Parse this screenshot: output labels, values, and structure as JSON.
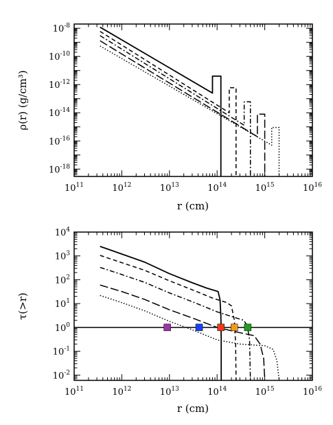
{
  "chart_data": [
    {
      "type": "line",
      "panel": "top",
      "xlabel": "r  (cm)",
      "ylabel": "ρ(r)  (g/cm³)",
      "xscale": "log",
      "yscale": "log",
      "xlim": [
        100000000000.0,
        1e+16
      ],
      "ylim": [
        3e-19,
        2e-08
      ],
      "x_ticks": [
        {
          "value": 100000000000.0,
          "base": "10",
          "exp": "11"
        },
        {
          "value": 1000000000000.0,
          "base": "10",
          "exp": "12"
        },
        {
          "value": 10000000000000.0,
          "base": "10",
          "exp": "13"
        },
        {
          "value": 100000000000000.0,
          "base": "10",
          "exp": "14"
        },
        {
          "value": 1000000000000000.0,
          "base": "10",
          "exp": "15"
        },
        {
          "value": 1e+16,
          "base": "10",
          "exp": "16"
        }
      ],
      "y_ticks": [
        {
          "value": 1e-08,
          "base": "10",
          "exp": "-8"
        },
        {
          "value": 1e-10,
          "base": "10",
          "exp": "-10"
        },
        {
          "value": 1e-12,
          "base": "10",
          "exp": "-12"
        },
        {
          "value": 1e-14,
          "base": "10",
          "exp": "-14"
        },
        {
          "value": 1e-16,
          "base": "10",
          "exp": "-16"
        },
        {
          "value": 1e-18,
          "base": "10",
          "exp": "-18"
        }
      ],
      "grid": false,
      "series": [
        {
          "style": "solid",
          "color": "#000000",
          "points": [
            [
              350000000000.0,
              1.2e-08
            ],
            [
              80000000000000.0,
              2.5e-13
            ],
            [
              80000000000000.0,
              4e-12
            ],
            [
              120000000000000.0,
              4e-12
            ],
            [
              120000000000000.0,
              3e-19
            ]
          ]
        },
        {
          "style": "dashed",
          "color": "#000000",
          "points": [
            [
              350000000000.0,
              6e-09
            ],
            [
              180000000000000.0,
              1e-14
            ],
            [
              180000000000000.0,
              6e-13
            ],
            [
              250000000000000.0,
              6e-13
            ],
            [
              250000000000000.0,
              3e-19
            ]
          ]
        },
        {
          "style": "dashdot",
          "color": "#000000",
          "points": [
            [
              350000000000.0,
              3e-09
            ],
            [
              370000000000000.0,
              1.3e-15
            ],
            [
              370000000000000.0,
              6e-14
            ],
            [
              500000000000000.0,
              6e-14
            ],
            [
              500000000000000.0,
              3e-19
            ]
          ]
        },
        {
          "style": "longdash",
          "color": "#000000",
          "points": [
            [
              350000000000.0,
              1.3e-09
            ],
            [
              700000000000000.0,
              2e-16
            ],
            [
              700000000000000.0,
              8e-15
            ],
            [
              1000000000000000.0,
              8e-15
            ],
            [
              1000000000000000.0,
              3e-19
            ]
          ]
        },
        {
          "style": "dotted",
          "color": "#000000",
          "points": [
            [
              350000000000.0,
              5.5e-10
            ],
            [
              1400000000000000.0,
              5e-17
            ],
            [
              1400000000000000.0,
              9e-16
            ],
            [
              2000000000000000.0,
              9e-16
            ],
            [
              2000000000000000.0,
              3e-19
            ]
          ]
        }
      ]
    },
    {
      "type": "line",
      "panel": "bottom",
      "xlabel": "r  (cm)",
      "ylabel": "τ(>r)",
      "xscale": "log",
      "yscale": "log",
      "xlim": [
        100000000000.0,
        1e+16
      ],
      "ylim": [
        0.006,
        10000.0
      ],
      "x_ticks": [
        {
          "value": 100000000000.0,
          "base": "10",
          "exp": "11"
        },
        {
          "value": 1000000000000.0,
          "base": "10",
          "exp": "12"
        },
        {
          "value": 10000000000000.0,
          "base": "10",
          "exp": "13"
        },
        {
          "value": 100000000000000.0,
          "base": "10",
          "exp": "14"
        },
        {
          "value": 1000000000000000.0,
          "base": "10",
          "exp": "15"
        },
        {
          "value": 1e+16,
          "base": "10",
          "exp": "16"
        }
      ],
      "y_ticks": [
        {
          "value": 10000.0,
          "base": "10",
          "exp": "4"
        },
        {
          "value": 1000.0,
          "base": "10",
          "exp": "3"
        },
        {
          "value": 100.0,
          "base": "10",
          "exp": "2"
        },
        {
          "value": 10.0,
          "base": "10",
          "exp": "1"
        },
        {
          "value": 1.0,
          "base": "10",
          "exp": "0"
        },
        {
          "value": 0.1,
          "base": "10",
          "exp": "-1"
        },
        {
          "value": 0.01,
          "base": "10",
          "exp": "-2"
        }
      ],
      "grid": false,
      "reference_line": {
        "y": 1.0,
        "style": "solid",
        "color": "#000000"
      },
      "series": [
        {
          "style": "solid",
          "color": "#000000",
          "points": [
            [
              350000000000.0,
              2500
            ],
            [
              1000000000000.0,
              1200
            ],
            [
              3000000000000.0,
              550
            ],
            [
              10000000000000.0,
              180
            ],
            [
              30000000000000.0,
              75
            ],
            [
              60000000000000.0,
              45
            ],
            [
              105000000000000.0,
              32
            ],
            [
              115000000000000.0,
              15
            ],
            [
              120000000000000.0,
              3
            ],
            [
              122000000000000.0,
              0.3
            ],
            [
              122000000000000.0,
              0.006
            ]
          ]
        },
        {
          "style": "dashed",
          "color": "#000000",
          "points": [
            [
              350000000000.0,
              1050
            ],
            [
              1000000000000.0,
              520
            ],
            [
              3000000000000.0,
              250
            ],
            [
              10000000000000.0,
              90
            ],
            [
              30000000000000.0,
              38
            ],
            [
              80000000000000.0,
              17
            ],
            [
              160000000000000.0,
              11
            ],
            [
              200000000000000.0,
              8
            ],
            [
              230000000000000.0,
              2
            ],
            [
              245000000000000.0,
              0.2
            ],
            [
              250000000000000.0,
              0.006
            ]
          ]
        },
        {
          "style": "dashdot",
          "color": "#000000",
          "points": [
            [
              350000000000.0,
              330
            ],
            [
              1000000000000.0,
              165
            ],
            [
              3000000000000.0,
              78
            ],
            [
              10000000000000.0,
              28
            ],
            [
              30000000000000.0,
              12
            ],
            [
              100000000000000.0,
              4.5
            ],
            [
              250000000000000.0,
              2.5
            ],
            [
              360000000000000.0,
              2.0
            ],
            [
              430000000000000.0,
              1.2
            ],
            [
              480000000000000.0,
              0.3
            ],
            [
              500000000000000.0,
              0.006
            ]
          ]
        },
        {
          "style": "longdash",
          "color": "#000000",
          "points": [
            [
              350000000000.0,
              60
            ],
            [
              1000000000000.0,
              32
            ],
            [
              3000000000000.0,
              15
            ],
            [
              10000000000000.0,
              5.5
            ],
            [
              30000000000000.0,
              2.5
            ],
            [
              100000000000000.0,
              1.0
            ],
            [
              300000000000000.0,
              0.6
            ],
            [
              600000000000000.0,
              0.45
            ],
            [
              800000000000000.0,
              0.2
            ],
            [
              950000000000000.0,
              0.05
            ],
            [
              1000000000000000.0,
              0.006
            ]
          ]
        },
        {
          "style": "dotted",
          "color": "#000000",
          "points": [
            [
              350000000000.0,
              22
            ],
            [
              1000000000000.0,
              11
            ],
            [
              3000000000000.0,
              5
            ],
            [
              10000000000000.0,
              1.8
            ],
            [
              30000000000000.0,
              0.8
            ],
            [
              100000000000000.0,
              0.3
            ],
            [
              300000000000000.0,
              0.2
            ],
            [
              1000000000000000.0,
              0.17
            ],
            [
              1500000000000000.0,
              0.12
            ],
            [
              1800000000000000.0,
              0.04
            ],
            [
              2000000000000000.0,
              0.006
            ]
          ]
        }
      ],
      "markers": [
        {
          "x": 9000000000000.0,
          "y": 1.0,
          "color": "#9a35a5"
        },
        {
          "x": 42000000000000.0,
          "y": 1.0,
          "color": "#1843f0"
        },
        {
          "x": 120000000000000.0,
          "y": 1.0,
          "color": "#ee3a1c"
        },
        {
          "x": 230000000000000.0,
          "y": 1.0,
          "color": "#f59a1c"
        },
        {
          "x": 440000000000000.0,
          "y": 1.0,
          "color": "#239a23"
        }
      ]
    }
  ]
}
